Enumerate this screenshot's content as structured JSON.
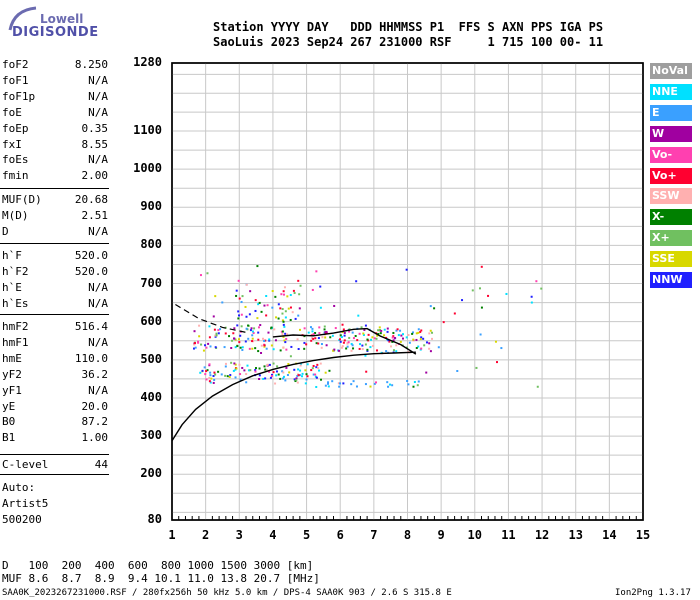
{
  "logo": {
    "line1": "Lowell",
    "line2": "DIGISONDE"
  },
  "header": {
    "line1": "Station YYYY DAY   DDD HHMMSS P1  FFS S AXN PPS IGA PS",
    "line2": "SaoLuis 2023 Sep24 267 231000 RSF     1 715 100 00- 11"
  },
  "params_group1": [
    {
      "label": "foF2",
      "value": "8.250"
    },
    {
      "label": "foF1",
      "value": "N/A"
    },
    {
      "label": "foF1p",
      "value": "N/A"
    },
    {
      "label": "foE",
      "value": "N/A"
    },
    {
      "label": "foEp",
      "value": "0.35"
    },
    {
      "label": "fxI",
      "value": "8.55"
    },
    {
      "label": "foEs",
      "value": "N/A"
    },
    {
      "label": "fmin",
      "value": "2.00"
    }
  ],
  "params_group2": [
    {
      "label": "MUF(D)",
      "value": "20.68"
    },
    {
      "label": "M(D)",
      "value": "2.51"
    },
    {
      "label": "D",
      "value": "N/A"
    }
  ],
  "params_group3": [
    {
      "label": "h`F",
      "value": "520.0"
    },
    {
      "label": "h`F2",
      "value": "520.0"
    },
    {
      "label": "h`E",
      "value": "N/A"
    },
    {
      "label": "h`Es",
      "value": "N/A"
    }
  ],
  "params_group4": [
    {
      "label": "hmF2",
      "value": "516.4"
    },
    {
      "label": "hmF1",
      "value": "N/A"
    },
    {
      "label": "hmE",
      "value": "110.0"
    },
    {
      "label": "yF2",
      "value": "36.2"
    },
    {
      "label": "yF1",
      "value": "N/A"
    },
    {
      "label": "yE",
      "value": "20.0"
    },
    {
      "label": "B0",
      "value": "87.2"
    },
    {
      "label": "B1",
      "value": "1.00"
    }
  ],
  "clevel": {
    "label": "C-level",
    "value": "44"
  },
  "auto": [
    "Auto:",
    "Artist5",
    "500200"
  ],
  "legend": [
    {
      "label": "NoVal",
      "color": "#9e9e9e"
    },
    {
      "label": "NNE",
      "color": "#00e0ff"
    },
    {
      "label": "E",
      "color": "#3aa0ff"
    },
    {
      "label": "W",
      "color": "#a000a0"
    },
    {
      "label": "Vo-",
      "color": "#ff40b0"
    },
    {
      "label": "Vo+",
      "color": "#ff0030"
    },
    {
      "label": "SSW",
      "color": "#ffb0b0"
    },
    {
      "label": "X-",
      "color": "#008000"
    },
    {
      "label": "X+",
      "color": "#70c060"
    },
    {
      "label": "SSE",
      "color": "#d8d800"
    },
    {
      "label": "NNW",
      "color": "#2020ff"
    }
  ],
  "chart_data": {
    "type": "scatter",
    "xlim": [
      1,
      15
    ],
    "ylim": [
      80,
      1280
    ],
    "x_ticks": [
      "1",
      "2",
      "3",
      "4",
      "5",
      "6",
      "7",
      "8",
      "9",
      "10",
      "11",
      "12",
      "13",
      "14",
      "15"
    ],
    "y_ticks": [
      "1280",
      "1100",
      "1000",
      "900",
      "800",
      "700",
      "600",
      "500",
      "400",
      "300",
      "200",
      "80"
    ],
    "grid": true,
    "profile_curve": [
      [
        1.0,
        288
      ],
      [
        1.3,
        330
      ],
      [
        1.7,
        370
      ],
      [
        2.2,
        405
      ],
      [
        2.8,
        435
      ],
      [
        3.4,
        458
      ],
      [
        4.0,
        475
      ],
      [
        4.6,
        488
      ],
      [
        5.2,
        498
      ],
      [
        5.8,
        506
      ],
      [
        6.4,
        512
      ],
      [
        7.0,
        516
      ],
      [
        7.6,
        518
      ],
      [
        8.25,
        520
      ]
    ],
    "trace_upper": [
      [
        4.0,
        560
      ],
      [
        4.6,
        565
      ],
      [
        5.2,
        563
      ],
      [
        5.8,
        570
      ],
      [
        6.4,
        580
      ],
      [
        6.8,
        582
      ],
      [
        7.2,
        562
      ],
      [
        7.8,
        540
      ],
      [
        8.25,
        515
      ]
    ],
    "dashed_line": [
      [
        1.1,
        645
      ],
      [
        1.8,
        608
      ],
      [
        2.5,
        585
      ],
      [
        3.2,
        572
      ]
    ],
    "echo_bands": [
      {
        "x0": 1.6,
        "x1": 7.2,
        "y0": 525,
        "y1": 595
      },
      {
        "x0": 7.2,
        "x1": 8.8,
        "y0": 520,
        "y1": 590
      },
      {
        "x0": 1.8,
        "x1": 5.5,
        "y0": 440,
        "y1": 495
      },
      {
        "x0": 5.5,
        "x1": 8.5,
        "y0": 432,
        "y1": 448
      },
      {
        "x0": 2.8,
        "x1": 4.8,
        "y0": 600,
        "y1": 700
      }
    ]
  },
  "distance_row": {
    "label": "D",
    "values": "100  200  400  600  800 1000 1500 3000 [km]"
  },
  "muf_row": {
    "label": "MUF",
    "values": "8.6  8.7  8.9  9.4 10.1 11.0 13.8 20.7 [MHz]"
  },
  "footer": {
    "left": "SAA0K_2023267231000.RSF / 280fx256h 50 kHz 5.0 km / DPS-4 SAA0K 903 / 2.6 S 315.8 E",
    "right": "Ion2Png 1.3.17"
  }
}
